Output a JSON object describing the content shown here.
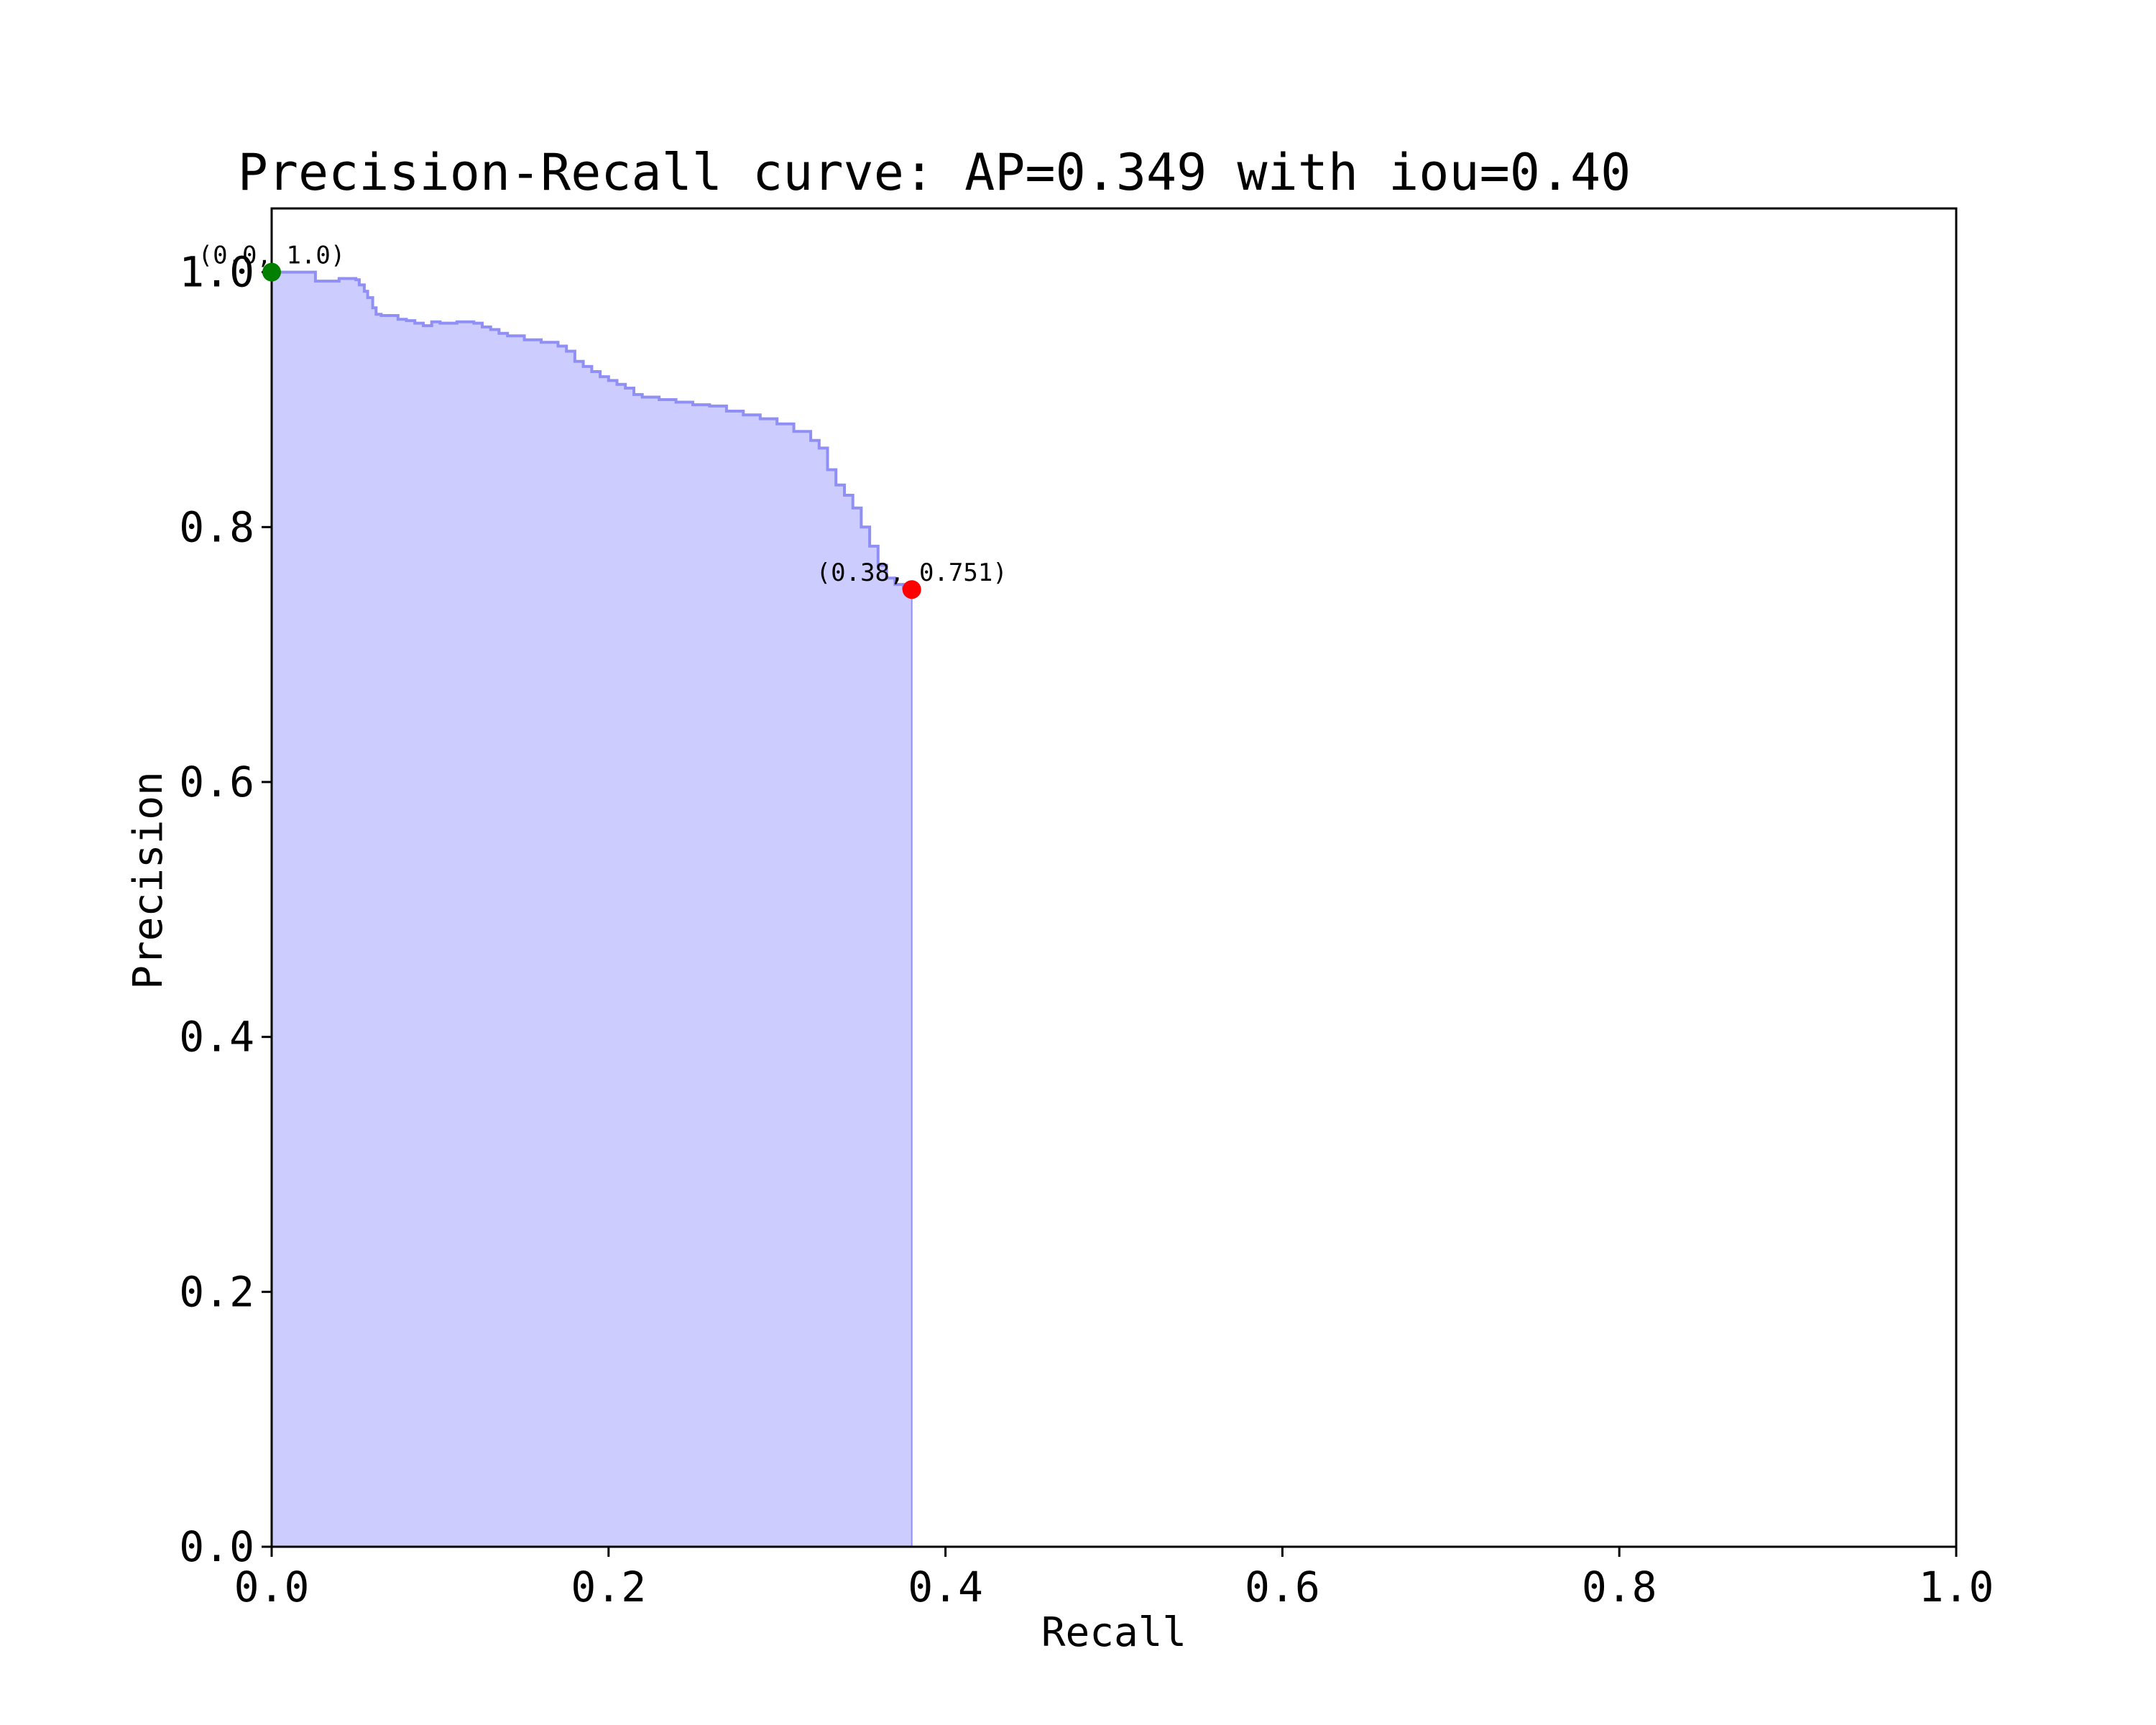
{
  "chart_data": {
    "type": "area",
    "title": "Precision-Recall curve: AP=0.349 with iou=0.40",
    "xlabel": "Recall",
    "ylabel": "Precision",
    "xlim": [
      0.0,
      1.0
    ],
    "ylim": [
      0.0,
      1.05
    ],
    "xticks": [
      0.0,
      0.2,
      0.4,
      0.6,
      0.8,
      1.0
    ],
    "yticks": [
      0.0,
      0.2,
      0.4,
      0.6,
      0.8,
      1.0
    ],
    "xtick_labels": [
      "0.0",
      "0.2",
      "0.4",
      "0.6",
      "0.8",
      "1.0"
    ],
    "ytick_labels": [
      "0.0",
      "0.2",
      "0.4",
      "0.6",
      "0.8",
      "1.0"
    ],
    "grid": false,
    "legend": "none",
    "fill_color": "#ccccff",
    "line_color": "#8f8ff5",
    "series": [
      {
        "recall": [
          0.0,
          0.026,
          0.026,
          0.04,
          0.05,
          0.052,
          0.055,
          0.057,
          0.06,
          0.062,
          0.065,
          0.075,
          0.08,
          0.085,
          0.09,
          0.095,
          0.1,
          0.11,
          0.12,
          0.125,
          0.13,
          0.135,
          0.14,
          0.15,
          0.16,
          0.17,
          0.175,
          0.18,
          0.185,
          0.19,
          0.195,
          0.2,
          0.205,
          0.21,
          0.215,
          0.22,
          0.23,
          0.24,
          0.25,
          0.26,
          0.27,
          0.28,
          0.29,
          0.3,
          0.31,
          0.32,
          0.325,
          0.33,
          0.335,
          0.34,
          0.345,
          0.35,
          0.355,
          0.36,
          0.365,
          0.37,
          0.375,
          0.38
        ],
        "precision": [
          1.0,
          1.0,
          0.993,
          0.995,
          0.994,
          0.99,
          0.985,
          0.98,
          0.972,
          0.967,
          0.966,
          0.963,
          0.962,
          0.96,
          0.958,
          0.961,
          0.96,
          0.961,
          0.96,
          0.957,
          0.955,
          0.952,
          0.95,
          0.947,
          0.945,
          0.942,
          0.938,
          0.93,
          0.926,
          0.922,
          0.918,
          0.915,
          0.912,
          0.909,
          0.904,
          0.902,
          0.9,
          0.898,
          0.896,
          0.895,
          0.891,
          0.888,
          0.885,
          0.881,
          0.875,
          0.868,
          0.862,
          0.845,
          0.833,
          0.825,
          0.815,
          0.8,
          0.785,
          0.77,
          0.76,
          0.755,
          0.752,
          0.751
        ]
      }
    ],
    "points": [
      {
        "x": 0.0,
        "y": 1.0,
        "color": "#007f00",
        "label": "(0.0, 1.0)"
      },
      {
        "x": 0.38,
        "y": 0.751,
        "color": "#ff0000",
        "label": "(0.38, 0.751)"
      }
    ]
  }
}
